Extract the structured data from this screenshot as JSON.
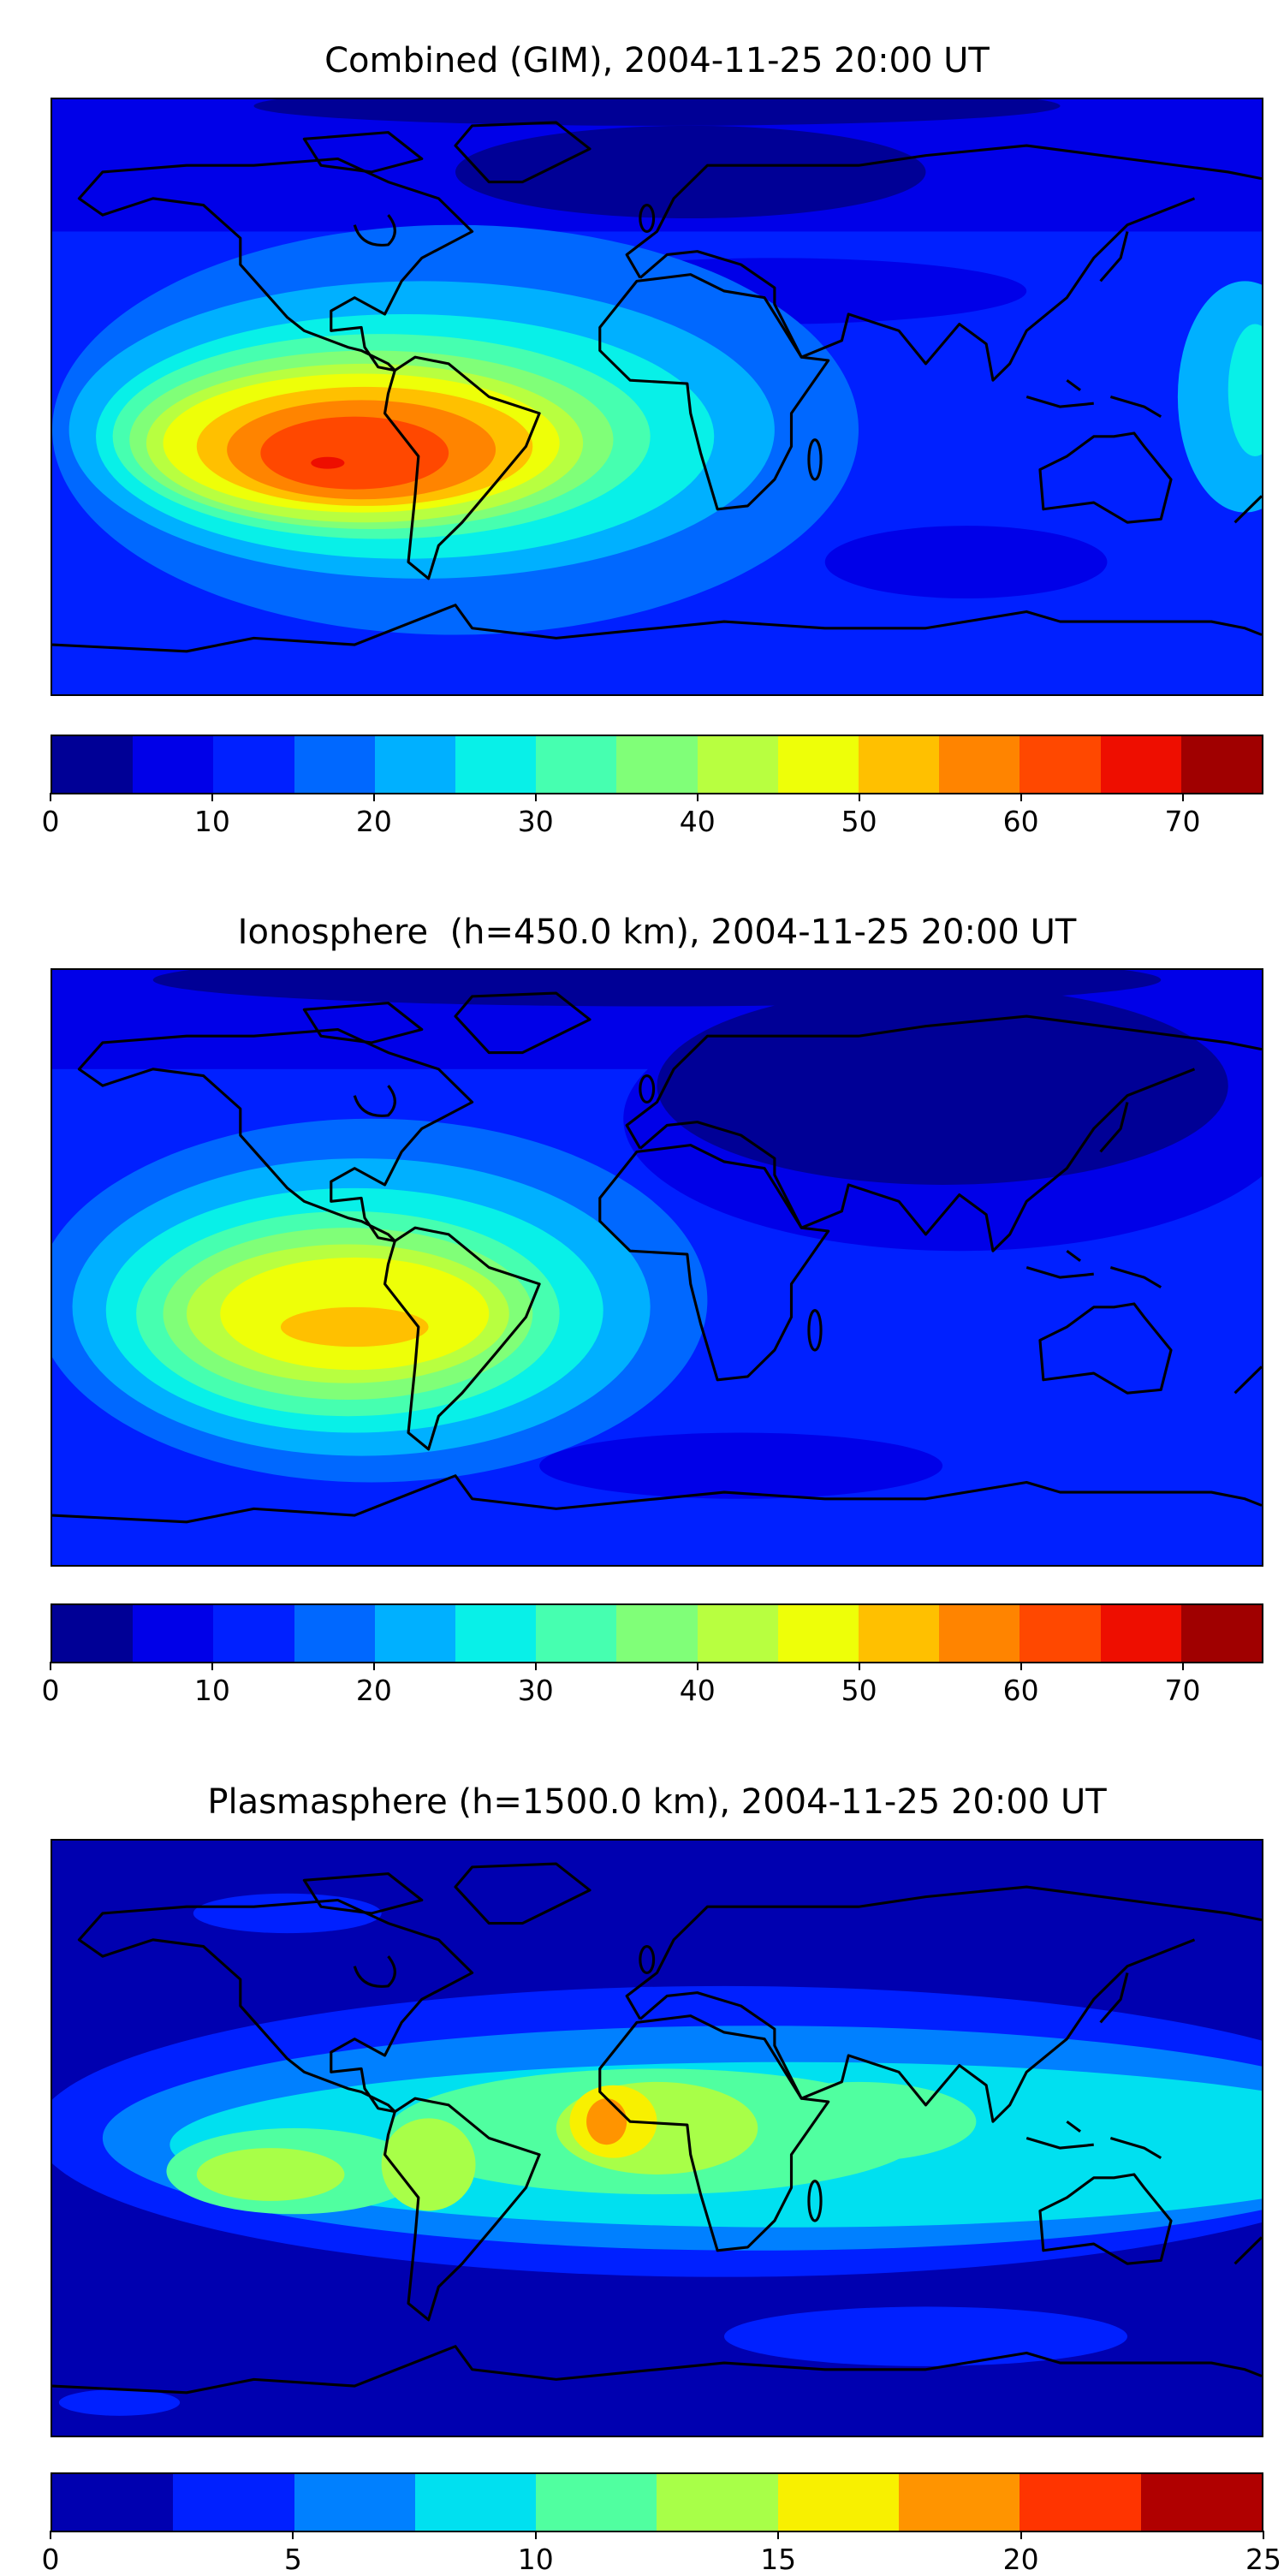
{
  "panels": [
    {
      "title": "Combined (GIM), 2004-11-25 20:00 UT",
      "colorbar": {
        "levels": [
          0,
          5,
          10,
          15,
          20,
          25,
          30,
          35,
          40,
          45,
          50,
          55,
          60,
          65,
          70,
          75
        ],
        "colors": [
          "#000096",
          "#0000e8",
          "#0020ff",
          "#0068ff",
          "#00b0ff",
          "#08f0e8",
          "#46ffb0",
          "#80ff78",
          "#b8ff40",
          "#eeff08",
          "#ffc000",
          "#ff8400",
          "#ff4800",
          "#ee0e00",
          "#a00000"
        ],
        "tick_labels": [
          "0",
          "10",
          "20",
          "30",
          "40",
          "50",
          "60",
          "70"
        ],
        "tick_values": [
          0,
          10,
          20,
          30,
          40,
          50,
          60,
          70
        ],
        "range": [
          0,
          75
        ]
      },
      "peak_region": "South America, ~65-70"
    },
    {
      "title": "Ionosphere  (h=450.0 km), 2004-11-25 20:00 UT",
      "colorbar": {
        "levels": [
          0,
          5,
          10,
          15,
          20,
          25,
          30,
          35,
          40,
          45,
          50,
          55,
          60,
          65,
          70,
          75
        ],
        "colors": [
          "#000096",
          "#0000e8",
          "#0020ff",
          "#0068ff",
          "#00b0ff",
          "#08f0e8",
          "#46ffb0",
          "#80ff78",
          "#b8ff40",
          "#eeff08",
          "#ffc000",
          "#ff8400",
          "#ff4800",
          "#ee0e00",
          "#a00000"
        ],
        "tick_labels": [
          "0",
          "10",
          "20",
          "30",
          "40",
          "50",
          "60",
          "70"
        ],
        "tick_values": [
          0,
          10,
          20,
          30,
          40,
          50,
          60,
          70
        ],
        "range": [
          0,
          75
        ]
      },
      "peak_region": "South America, ~50-55"
    },
    {
      "title": "Plasmasphere (h=1500.0 km), 2004-11-25 20:00 UT",
      "colorbar": {
        "levels": [
          0,
          2.5,
          5,
          7.5,
          10,
          12.5,
          15,
          17.5,
          20,
          22.5,
          25
        ],
        "colors": [
          "#0000b0",
          "#0020ff",
          "#0080ff",
          "#00e0f0",
          "#50ffa0",
          "#a8ff48",
          "#f8f000",
          "#ff9400",
          "#ff3400",
          "#b00000"
        ],
        "tick_labels": [
          "0",
          "5",
          "10",
          "15",
          "20",
          "25"
        ],
        "tick_values": [
          0,
          5,
          10,
          15,
          20,
          25
        ],
        "range": [
          0,
          25
        ]
      },
      "peak_region": "West Africa, ~17.5-20"
    }
  ]
}
